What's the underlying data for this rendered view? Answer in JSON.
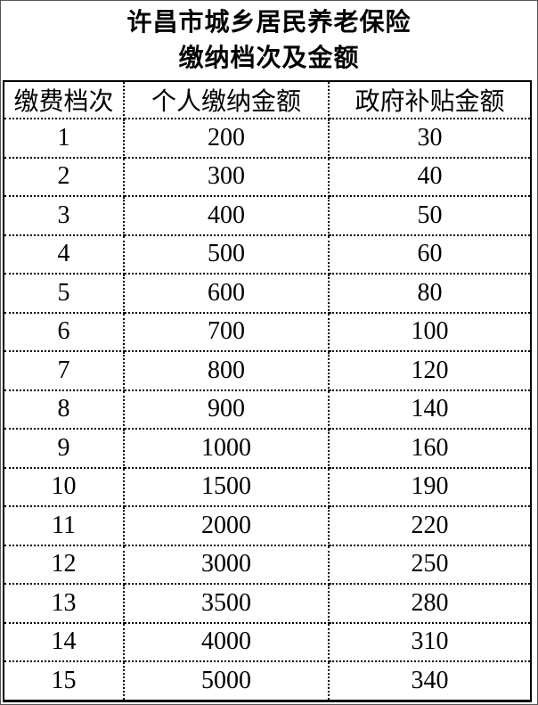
{
  "page": {
    "title_line1": "许昌市城乡居民养老保险",
    "title_line2": "缴纳档次及金额"
  },
  "table": {
    "headers": [
      "缴费档次",
      "个人缴纳金额",
      "政府补贴金额"
    ],
    "rows": [
      [
        "1",
        "200",
        "30"
      ],
      [
        "2",
        "300",
        "40"
      ],
      [
        "3",
        "400",
        "50"
      ],
      [
        "4",
        "500",
        "60"
      ],
      [
        "5",
        "600",
        "80"
      ],
      [
        "6",
        "700",
        "100"
      ],
      [
        "7",
        "800",
        "120"
      ],
      [
        "8",
        "900",
        "140"
      ],
      [
        "9",
        "1000",
        "160"
      ],
      [
        "10",
        "1500",
        "190"
      ],
      [
        "11",
        "2000",
        "220"
      ],
      [
        "12",
        "3000",
        "250"
      ],
      [
        "13",
        "3500",
        "280"
      ],
      [
        "14",
        "4000",
        "310"
      ],
      [
        "15",
        "5000",
        "340"
      ]
    ],
    "cell_names": [
      "tier-cell",
      "personal-amount-cell",
      "subsidy-amount-cell"
    ]
  },
  "colors": {
    "text": "#000000",
    "background": "#ffffff",
    "border": "#000000",
    "frame": "#555555"
  }
}
